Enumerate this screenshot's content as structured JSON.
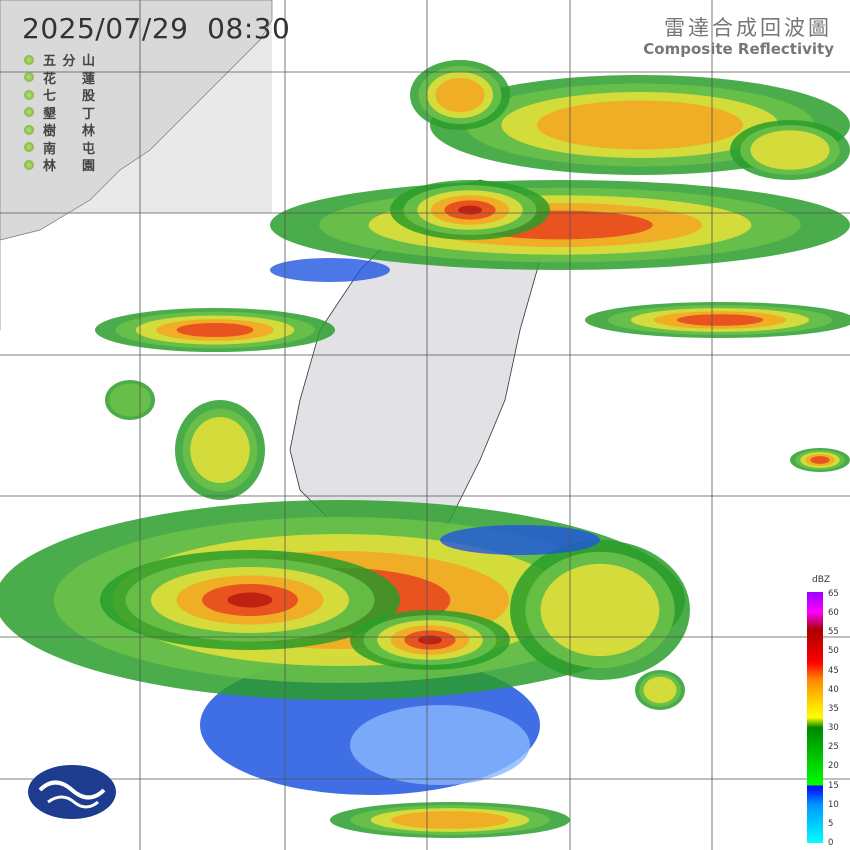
{
  "header": {
    "timestamp": "2025/07/29  08:30",
    "title_zh": "雷達合成回波圖",
    "title_en": "Composite Reflectivity"
  },
  "stations": [
    "五分山",
    "花蓮",
    "七股",
    "墾丁",
    "樹林",
    "南屯",
    "林園"
  ],
  "legend": {
    "unit": "dBZ",
    "ticks": [
      0,
      5,
      10,
      15,
      20,
      25,
      30,
      35,
      40,
      45,
      50,
      55,
      60,
      65
    ]
  }
}
